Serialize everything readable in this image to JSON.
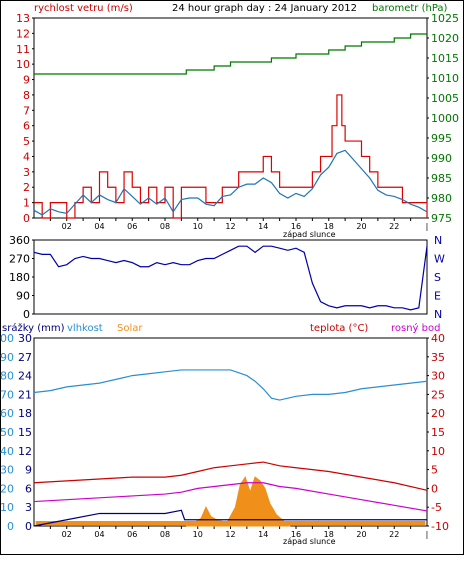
{
  "colors": {
    "wind": "#dd0000",
    "gust_line": "#1f77b4",
    "baro": "#007700",
    "dir": "#0000aa",
    "humidity": "#2a8fd0",
    "solar": "#f0901a",
    "temp": "#cc0000",
    "dew": "#cc00cc",
    "rain": "#000080",
    "axis_left_top": "#cc0000",
    "axis_right_top": "#007700",
    "axis_rain": "#000080",
    "axis_hum": "#2a8fd0",
    "axis_temp": "#cc0000"
  },
  "panel1": {
    "title": "24 hour graph day : 24 January 2012",
    "left_label": "rychlost vetru (m/s)",
    "right_label": "barometr (hPa)",
    "left_ticks": [
      "0",
      "1",
      "2",
      "3",
      "4",
      "5",
      "6",
      "7",
      "8",
      "9",
      "10",
      "11",
      "12",
      "13"
    ],
    "right_ticks": [
      "975",
      "980",
      "985",
      "990",
      "995",
      "1000",
      "1005",
      "1010",
      "1015",
      "1020",
      "1025"
    ],
    "x_labels": [
      "02",
      "04",
      "06",
      "08",
      "10",
      "12",
      "14",
      "16",
      "18",
      "20",
      "22",
      "|"
    ],
    "sunset_label": "západ slunce"
  },
  "panel2": {
    "left_ticks": [
      "0",
      "90",
      "180",
      "270",
      "360"
    ],
    "right_ticks": [
      "N",
      "E",
      "S",
      "W",
      "N"
    ]
  },
  "panel3": {
    "rain_label": "srážky (mm)",
    "hum_label": "vlhkost",
    "solar_label": "Solar",
    "temp_label": "teplota (°C)",
    "dew_label": "rosný bod",
    "rain_ticks": [
      "0",
      "3",
      "6",
      "9",
      "12",
      "15",
      "18",
      "21",
      "24",
      "27",
      "30"
    ],
    "hum_ticks": [
      "0",
      "10",
      "20",
      "30",
      "40",
      "50",
      "60",
      "70",
      "80",
      "90",
      "100"
    ],
    "temp_ticks": [
      "-10",
      "-5",
      "0",
      "5",
      "10",
      "15",
      "20",
      "25",
      "30",
      "35",
      "40"
    ],
    "x_labels": [
      "02",
      "04",
      "06",
      "08",
      "10",
      "12",
      "14",
      "16",
      "18",
      "20",
      "22",
      "|"
    ],
    "sunset_label": "západ slunce"
  },
  "chart_data": [
    {
      "type": "line",
      "title": "24 hour graph day : 24 January 2012",
      "x_unit": "hour",
      "xlim": [
        0,
        24
      ],
      "ylabel": "rychlost vetru (m/s)",
      "ylim": [
        0,
        13
      ],
      "y2label": "barometr (hPa)",
      "y2lim": [
        975,
        1025
      ],
      "series": [
        {
          "name": "rychlost vetru (m/s)",
          "x": [
            0,
            0.5,
            1,
            1.5,
            2,
            2.5,
            3,
            3.5,
            4,
            4.5,
            5,
            5.5,
            6,
            6.5,
            7,
            7.5,
            8,
            8.5,
            9,
            9.5,
            10,
            10.5,
            11,
            11.5,
            12,
            12.5,
            13,
            13.5,
            14,
            14.5,
            15,
            15.5,
            16,
            16.5,
            17,
            17.5,
            18,
            18.2,
            18.5,
            18.8,
            19,
            19.5,
            20,
            20.5,
            21,
            21.5,
            22,
            22.5,
            23,
            23.5,
            24
          ],
          "y": [
            1,
            0,
            1,
            1,
            0,
            1,
            2,
            1,
            3,
            2,
            1,
            3,
            2,
            1,
            2,
            1,
            2,
            0,
            2,
            2,
            2,
            1,
            1,
            2,
            2,
            3,
            3,
            3,
            4,
            3,
            2,
            2,
            2,
            2,
            3,
            4,
            4,
            6,
            8,
            6,
            5,
            5,
            4,
            3,
            2,
            2,
            2,
            1,
            1,
            1,
            0
          ]
        },
        {
          "name": "",
          "x": [
            0,
            0.5,
            1,
            1.5,
            2,
            2.5,
            3,
            3.5,
            4,
            4.5,
            5,
            5.5,
            6,
            6.5,
            7,
            7.5,
            8,
            8.5,
            9,
            9.5,
            10,
            10.5,
            11,
            11.5,
            12,
            12.5,
            13,
            13.5,
            14,
            14.5,
            15,
            15.5,
            16,
            16.5,
            17,
            17.5,
            18,
            18.5,
            19,
            19.5,
            20,
            20.5,
            21,
            21.5,
            22,
            22.5,
            23,
            23.5,
            24
          ],
          "y": [
            0.5,
            0.2,
            0.6,
            0.4,
            0.3,
            0.9,
            1.5,
            1.0,
            1.5,
            1.2,
            1.0,
            1.9,
            1.4,
            0.9,
            1.3,
            0.9,
            1.3,
            0.4,
            1.2,
            1.3,
            1.3,
            0.9,
            0.8,
            1.4,
            1.5,
            2.0,
            2.2,
            2.2,
            2.6,
            2.3,
            1.6,
            1.3,
            1.6,
            1.4,
            1.9,
            2.8,
            3.3,
            4.2,
            4.4,
            3.8,
            3.2,
            2.6,
            1.8,
            1.5,
            1.4,
            1.2,
            0.9,
            0.7,
            0.4
          ]
        },
        {
          "name": "barometr (hPa)",
          "axis": "right",
          "x": [
            0,
            2,
            4,
            6,
            8,
            9.3,
            10,
            11,
            12,
            13,
            14,
            14.5,
            15,
            16,
            17,
            18,
            19,
            20,
            21,
            22,
            23,
            24
          ],
          "y": [
            1011,
            1011,
            1011,
            1011,
            1011,
            1012,
            1012,
            1013,
            1014,
            1014,
            1014,
            1015,
            1015,
            1016,
            1016,
            1017,
            1018,
            1019,
            1019,
            1020,
            1021,
            1021
          ]
        }
      ]
    },
    {
      "type": "line",
      "x_unit": "hour",
      "xlim": [
        0,
        24
      ],
      "ylim": [
        0,
        360
      ],
      "series": [
        {
          "name": "",
          "x": [
            0,
            0.5,
            1,
            1.5,
            2,
            2.5,
            3,
            3.5,
            4,
            4.5,
            5,
            5.5,
            6,
            6.5,
            7,
            7.5,
            8,
            8.5,
            9,
            9.5,
            10,
            10.5,
            11,
            11.5,
            12,
            12.5,
            13,
            13.5,
            14,
            14.5,
            15,
            15.5,
            16,
            16.5,
            17,
            17.5,
            18,
            18.5,
            19,
            19.5,
            20,
            20.5,
            21,
            21.5,
            22,
            22.5,
            23,
            23.5,
            24
          ],
          "y": [
            300,
            290,
            290,
            230,
            240,
            270,
            280,
            270,
            270,
            260,
            250,
            260,
            250,
            230,
            230,
            250,
            240,
            250,
            240,
            240,
            260,
            270,
            270,
            290,
            310,
            330,
            330,
            300,
            330,
            330,
            320,
            310,
            320,
            300,
            150,
            60,
            40,
            30,
            40,
            40,
            40,
            30,
            40,
            40,
            30,
            30,
            20,
            30,
            330
          ]
        }
      ]
    },
    {
      "type": "line",
      "x_unit": "hour",
      "xlim": [
        0,
        24
      ],
      "ylabel": "vlhkost",
      "ylim": [
        0,
        100
      ],
      "y2label": "teplota (°C)",
      "y2lim": [
        -10,
        40
      ],
      "series": [
        {
          "name": "vlhkost",
          "x": [
            0,
            1,
            2,
            3,
            4,
            5,
            6,
            7,
            8,
            9,
            10,
            11,
            12,
            13,
            13.5,
            14,
            14.5,
            15,
            15.5,
            16,
            17,
            18,
            19,
            20,
            21,
            22,
            23,
            24
          ],
          "y": [
            71,
            72,
            74,
            75,
            76,
            78,
            80,
            81,
            82,
            83,
            83,
            83,
            83,
            80,
            77,
            73,
            68,
            67,
            68,
            69,
            70,
            70,
            71,
            73,
            74,
            75,
            76,
            77
          ]
        },
        {
          "name": "teplota (°C)",
          "axis": "right",
          "x": [
            0,
            2,
            4,
            6,
            8,
            9,
            10,
            11,
            12,
            13,
            14,
            15,
            16,
            18,
            20,
            22,
            24
          ],
          "y": [
            1.5,
            2,
            2.5,
            3,
            3,
            3.5,
            4.5,
            5.5,
            6,
            6.5,
            7,
            6,
            5.5,
            4.5,
            3,
            1.5,
            -0.5
          ]
        },
        {
          "name": "rosný bod",
          "axis": "right",
          "x": [
            0,
            2,
            4,
            6,
            8,
            9,
            10,
            11,
            12,
            13,
            14,
            15,
            16,
            18,
            20,
            22,
            24
          ],
          "y": [
            -3.5,
            -3,
            -2.5,
            -2,
            -1.5,
            -1,
            0,
            0.5,
            1,
            1.5,
            1.5,
            0.5,
            0,
            -1.5,
            -3,
            -4.5,
            -6
          ]
        },
        {
          "name": "Solar",
          "x": [
            9.3,
            9.8,
            10.2,
            10.5,
            10.8,
            11.2,
            11.8,
            12.3,
            12.6,
            12.9,
            13.2,
            13.5,
            13.8,
            14.1,
            14.4,
            14.8,
            15.2,
            15.6
          ],
          "y": [
            0,
            2,
            4,
            10,
            5,
            3,
            2,
            10,
            22,
            26,
            18,
            26,
            24,
            20,
            12,
            6,
            3,
            0
          ]
        },
        {
          "name": "srážky (mm)",
          "x": [
            0,
            2,
            4,
            8,
            9,
            9.2,
            10,
            12,
            14,
            16,
            18,
            20,
            22,
            24
          ],
          "y": [
            0,
            1,
            2,
            2,
            2.5,
            1,
            1,
            1,
            1,
            1,
            1,
            1,
            1,
            1
          ]
        }
      ]
    }
  ]
}
